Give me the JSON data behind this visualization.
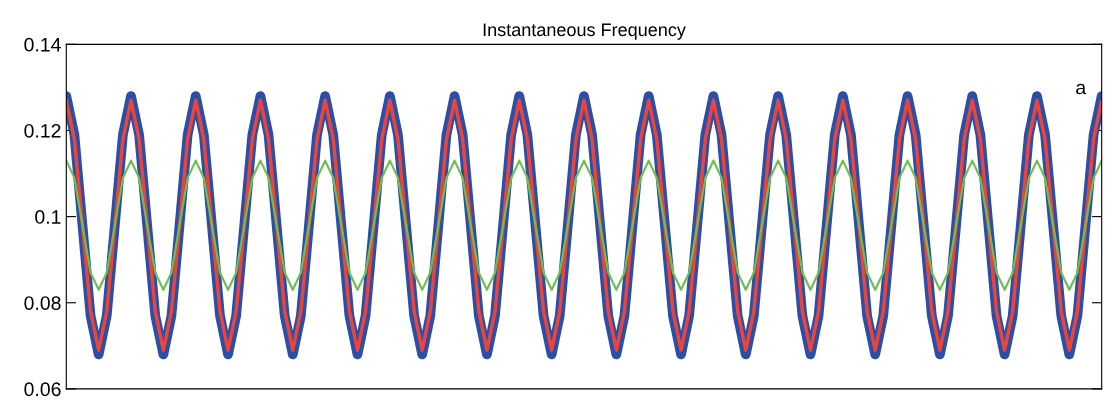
{
  "chart_data": {
    "type": "line",
    "title": "Instantaneous Frequency",
    "categories": [
      null,
      null,
      null,
      null,
      null,
      null,
      null,
      null,
      null,
      null,
      null,
      null,
      null,
      null,
      null,
      null,
      null,
      null,
      null,
      null,
      null,
      null,
      null,
      null,
      null,
      null,
      null,
      null,
      null,
      null,
      null,
      null,
      null,
      null,
      null,
      null,
      null,
      null,
      null,
      null,
      null,
      null,
      null,
      null,
      null,
      null,
      null,
      null,
      null,
      null,
      null,
      null,
      null,
      null,
      null,
      null,
      null,
      null,
      null,
      null,
      null,
      null,
      null,
      null,
      null,
      null,
      null,
      null,
      null,
      null,
      null,
      null,
      null,
      null,
      null,
      null,
      null,
      null,
      null,
      null,
      null,
      null,
      null,
      null,
      null,
      null,
      null,
      null,
      null,
      null,
      null,
      null,
      null,
      null,
      null,
      null,
      null,
      null,
      null,
      null,
      null,
      null,
      null,
      null,
      null,
      null,
      null,
      null,
      null,
      null,
      null,
      null,
      null,
      null,
      null,
      null,
      null,
      null,
      null,
      null,
      null,
      null,
      null,
      null,
      null,
      null,
      null,
      null,
      null
    ],
    "series": [
      {
        "color": "#2b4ea6",
        "values": [
          0.128,
          0.119,
          0.098,
          0.077,
          0.068,
          0.077,
          0.098,
          0.119,
          0.128,
          0.119,
          0.098,
          0.077,
          0.068,
          0.077,
          0.098,
          0.119,
          0.128,
          0.119,
          0.098,
          0.077,
          0.068,
          0.077,
          0.098,
          0.119,
          0.128,
          0.119,
          0.098,
          0.077,
          0.068,
          0.077,
          0.098,
          0.119,
          0.128,
          0.119,
          0.098,
          0.077,
          0.068,
          0.077,
          0.098,
          0.119,
          0.128,
          0.119,
          0.098,
          0.077,
          0.068,
          0.077,
          0.098,
          0.119,
          0.128,
          0.119,
          0.098,
          0.077,
          0.068,
          0.077,
          0.098,
          0.119,
          0.128,
          0.119,
          0.098,
          0.077,
          0.068,
          0.077,
          0.098,
          0.119,
          0.128,
          0.119,
          0.098,
          0.077,
          0.068,
          0.077,
          0.098,
          0.119,
          0.128,
          0.119,
          0.098,
          0.077,
          0.068,
          0.077,
          0.098,
          0.119,
          0.128,
          0.119,
          0.098,
          0.077,
          0.068,
          0.077,
          0.098,
          0.119,
          0.128,
          0.119,
          0.098,
          0.077,
          0.068,
          0.077,
          0.098,
          0.119,
          0.128,
          0.119,
          0.098,
          0.077,
          0.068,
          0.077,
          0.098,
          0.119,
          0.128,
          0.119,
          0.098,
          0.077,
          0.068,
          0.077,
          0.098,
          0.119,
          0.128,
          0.119,
          0.098,
          0.077,
          0.068,
          0.077,
          0.098,
          0.119,
          0.128,
          0.119,
          0.098,
          0.077,
          0.068,
          0.077,
          0.098,
          0.119,
          0.128
        ]
      },
      {
        "color": "#e8453c",
        "values": [
          0.127,
          0.118,
          0.098,
          0.078,
          0.069,
          0.078,
          0.098,
          0.118,
          0.127,
          0.118,
          0.098,
          0.078,
          0.069,
          0.078,
          0.098,
          0.118,
          0.127,
          0.118,
          0.098,
          0.078,
          0.069,
          0.078,
          0.098,
          0.118,
          0.127,
          0.118,
          0.098,
          0.078,
          0.069,
          0.078,
          0.098,
          0.118,
          0.127,
          0.118,
          0.098,
          0.078,
          0.069,
          0.078,
          0.098,
          0.118,
          0.127,
          0.118,
          0.098,
          0.078,
          0.069,
          0.078,
          0.098,
          0.118,
          0.127,
          0.118,
          0.098,
          0.078,
          0.069,
          0.078,
          0.098,
          0.118,
          0.127,
          0.118,
          0.098,
          0.078,
          0.069,
          0.078,
          0.098,
          0.118,
          0.127,
          0.118,
          0.098,
          0.078,
          0.069,
          0.078,
          0.098,
          0.118,
          0.127,
          0.118,
          0.098,
          0.078,
          0.069,
          0.078,
          0.098,
          0.118,
          0.127,
          0.118,
          0.098,
          0.078,
          0.069,
          0.078,
          0.098,
          0.118,
          0.127,
          0.118,
          0.098,
          0.078,
          0.069,
          0.078,
          0.098,
          0.118,
          0.127,
          0.118,
          0.098,
          0.078,
          0.069,
          0.078,
          0.098,
          0.118,
          0.127,
          0.118,
          0.098,
          0.078,
          0.069,
          0.078,
          0.098,
          0.118,
          0.127,
          0.118,
          0.098,
          0.078,
          0.069,
          0.078,
          0.098,
          0.118,
          0.127,
          0.118,
          0.098,
          0.078,
          0.069,
          0.078,
          0.098,
          0.118,
          0.127
        ]
      },
      {
        "color": "#6dbf4f",
        "values": [
          0.113,
          0.109,
          0.098,
          0.087,
          0.083,
          0.087,
          0.098,
          0.109,
          0.113,
          0.109,
          0.098,
          0.087,
          0.083,
          0.087,
          0.098,
          0.109,
          0.113,
          0.109,
          0.098,
          0.087,
          0.083,
          0.087,
          0.098,
          0.109,
          0.113,
          0.109,
          0.098,
          0.087,
          0.083,
          0.087,
          0.098,
          0.109,
          0.113,
          0.109,
          0.098,
          0.087,
          0.083,
          0.087,
          0.098,
          0.109,
          0.113,
          0.109,
          0.098,
          0.087,
          0.083,
          0.087,
          0.098,
          0.109,
          0.113,
          0.109,
          0.098,
          0.087,
          0.083,
          0.087,
          0.098,
          0.109,
          0.113,
          0.109,
          0.098,
          0.087,
          0.083,
          0.087,
          0.098,
          0.109,
          0.113,
          0.109,
          0.098,
          0.087,
          0.083,
          0.087,
          0.098,
          0.109,
          0.113,
          0.109,
          0.098,
          0.087,
          0.083,
          0.087,
          0.098,
          0.109,
          0.113,
          0.109,
          0.098,
          0.087,
          0.083,
          0.087,
          0.098,
          0.109,
          0.113,
          0.109,
          0.098,
          0.087,
          0.083,
          0.087,
          0.098,
          0.109,
          0.113,
          0.109,
          0.098,
          0.087,
          0.083,
          0.087,
          0.098,
          0.109,
          0.113,
          0.109,
          0.098,
          0.087,
          0.083,
          0.087,
          0.098,
          0.109,
          0.113,
          0.109,
          0.098,
          0.087,
          0.083,
          0.087,
          0.098,
          0.109,
          0.113,
          0.109,
          0.098,
          0.087,
          0.083,
          0.087,
          0.098,
          0.109,
          0.113
        ]
      }
    ],
    "ylim": [
      0.06,
      0.14
    ],
    "yticks": [
      0.06,
      0.08,
      0.1,
      0.12,
      0.14
    ],
    "annotations": [
      "a"
    ]
  }
}
